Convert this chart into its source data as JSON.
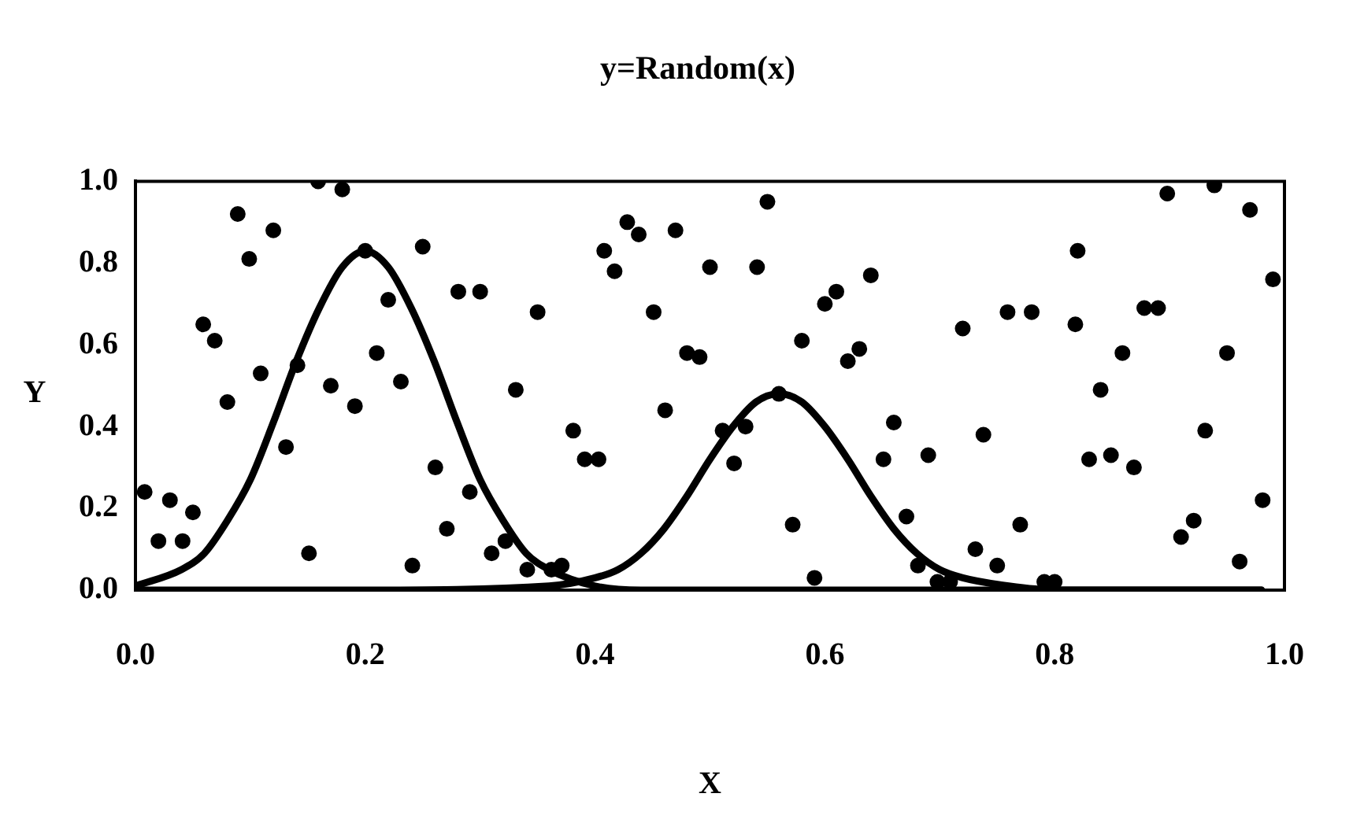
{
  "chart_data": {
    "type": "scatter",
    "title": "y=Random(x)",
    "xlabel": "X",
    "ylabel": "Y",
    "xlim": [
      0,
      1
    ],
    "ylim": [
      0,
      1
    ],
    "xticks": [
      {
        "value": 0,
        "label": "0.0"
      },
      {
        "value": 0.2,
        "label": "0.2"
      },
      {
        "value": 0.4,
        "label": "0.4"
      },
      {
        "value": 0.6,
        "label": "0.6"
      },
      {
        "value": 0.8,
        "label": "0.8"
      },
      {
        "value": 1,
        "label": "1.0"
      }
    ],
    "yticks": [
      {
        "value": 0,
        "label": "0.0"
      },
      {
        "value": 0.2,
        "label": "0.2"
      },
      {
        "value": 0.4,
        "label": "0.4"
      },
      {
        "value": 0.6,
        "label": "0.6"
      },
      {
        "value": 0.8,
        "label": "0.8"
      },
      {
        "value": 1,
        "label": "1.0"
      }
    ],
    "legend": false,
    "grid": false,
    "series": [
      {
        "type": "scatter",
        "marker": "circle",
        "color": "#000000",
        "x": [
          0.008,
          0.02,
          0.03,
          0.041,
          0.05,
          0.059,
          0.069,
          0.08,
          0.089,
          0.099,
          0.109,
          0.12,
          0.131,
          0.141,
          0.151,
          0.159,
          0.17,
          0.18,
          0.191,
          0.2,
          0.21,
          0.22,
          0.231,
          0.241,
          0.25,
          0.261,
          0.271,
          0.281,
          0.291,
          0.3,
          0.31,
          0.322,
          0.331,
          0.341,
          0.35,
          0.362,
          0.371,
          0.381,
          0.391,
          0.403,
          0.408,
          0.417,
          0.428,
          0.438,
          0.451,
          0.461,
          0.47,
          0.48,
          0.491,
          0.5,
          0.511,
          0.521,
          0.531,
          0.541,
          0.55,
          0.56,
          0.572,
          0.58,
          0.591,
          0.6,
          0.61,
          0.62,
          0.63,
          0.64,
          0.651,
          0.66,
          0.671,
          0.681,
          0.69,
          0.698,
          0.709,
          0.72,
          0.731,
          0.738,
          0.75,
          0.759,
          0.77,
          0.78,
          0.791,
          0.8,
          0.818,
          0.82,
          0.83,
          0.84,
          0.849,
          0.859,
          0.869,
          0.878,
          0.89,
          0.898,
          0.91,
          0.921,
          0.931,
          0.939,
          0.95,
          0.961,
          0.97,
          0.981,
          0.99
        ],
        "values": [
          0.24,
          0.12,
          0.22,
          0.12,
          0.19,
          0.65,
          0.61,
          0.46,
          0.92,
          0.81,
          0.53,
          0.88,
          0.35,
          0.55,
          0.09,
          1.0,
          0.5,
          0.98,
          0.45,
          0.83,
          0.58,
          0.71,
          0.51,
          0.06,
          0.84,
          0.3,
          0.15,
          0.73,
          0.24,
          0.73,
          0.09,
          0.12,
          0.49,
          0.05,
          0.68,
          0.05,
          0.06,
          0.39,
          0.32,
          0.32,
          0.83,
          0.78,
          0.9,
          0.87,
          0.68,
          0.44,
          0.88,
          0.58,
          0.57,
          0.79,
          0.39,
          0.31,
          0.4,
          0.79,
          0.95,
          0.48,
          0.16,
          0.61,
          0.03,
          0.7,
          0.73,
          0.56,
          0.59,
          0.77,
          0.32,
          0.41,
          0.18,
          0.06,
          0.33,
          0.02,
          0.02,
          0.64,
          0.1,
          0.38,
          0.06,
          0.68,
          0.16,
          0.68,
          0.02,
          0.02,
          0.65,
          0.83,
          0.32,
          0.49,
          0.33,
          0.58,
          0.3,
          0.69,
          0.69,
          0.97,
          0.13,
          0.17,
          0.39,
          0.99,
          0.58,
          0.07,
          0.93,
          0.22,
          0.76
        ]
      },
      {
        "type": "line",
        "marker": "none",
        "line_style": "solid",
        "color": "#000000",
        "x": [
          0,
          0.04,
          0.06,
          0.08,
          0.1,
          0.12,
          0.14,
          0.16,
          0.18,
          0.2,
          0.22,
          0.24,
          0.26,
          0.28,
          0.3,
          0.32,
          0.34,
          0.36,
          0.4,
          0.44,
          0.6,
          0.8,
          0.98
        ],
        "values": [
          0.01,
          0.05,
          0.09,
          0.17,
          0.27,
          0.41,
          0.56,
          0.69,
          0.79,
          0.83,
          0.79,
          0.69,
          0.56,
          0.41,
          0.27,
          0.17,
          0.09,
          0.05,
          0.01,
          0,
          0,
          0,
          0
        ]
      },
      {
        "type": "line",
        "marker": "none",
        "line_style": "solid",
        "color": "#000000",
        "x": [
          0,
          0.2,
          0.36,
          0.4,
          0.42,
          0.44,
          0.46,
          0.48,
          0.5,
          0.52,
          0.54,
          0.56,
          0.58,
          0.6,
          0.62,
          0.64,
          0.66,
          0.68,
          0.7,
          0.72,
          0.76,
          0.8,
          0.98
        ],
        "values": [
          0,
          0,
          0.01,
          0.03,
          0.05,
          0.09,
          0.15,
          0.23,
          0.32,
          0.4,
          0.46,
          0.48,
          0.46,
          0.4,
          0.32,
          0.23,
          0.15,
          0.09,
          0.05,
          0.03,
          0.01,
          0,
          0
        ]
      }
    ]
  }
}
